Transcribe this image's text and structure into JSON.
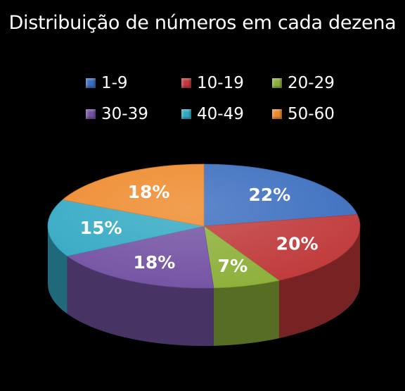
{
  "chart_data": {
    "type": "pie",
    "title": "Distribuição de números em cada dezena",
    "legend_position": "top",
    "categories": [
      "1-9",
      "10-19",
      "20-29",
      "30-39",
      "40-49",
      "50-60"
    ],
    "values": [
      22,
      20,
      7,
      18,
      15,
      18
    ],
    "labels": [
      "22%",
      "20%",
      "7%",
      "18%",
      "15%",
      "18%"
    ],
    "colors": [
      "#3b6ebf",
      "#c0393a",
      "#8db03a",
      "#7452a3",
      "#33a9c4",
      "#ee8a2c"
    ]
  }
}
